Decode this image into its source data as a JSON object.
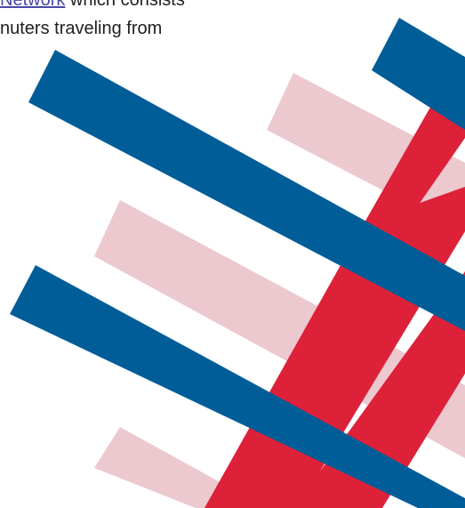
{
  "text": {
    "line1": {
      "link": "Network",
      "rest": " which consists"
    },
    "line2": "nuters traveling from"
  },
  "colors": {
    "blue": "#005d98",
    "red": "#dd2139",
    "pink": "#ecc8cf"
  }
}
